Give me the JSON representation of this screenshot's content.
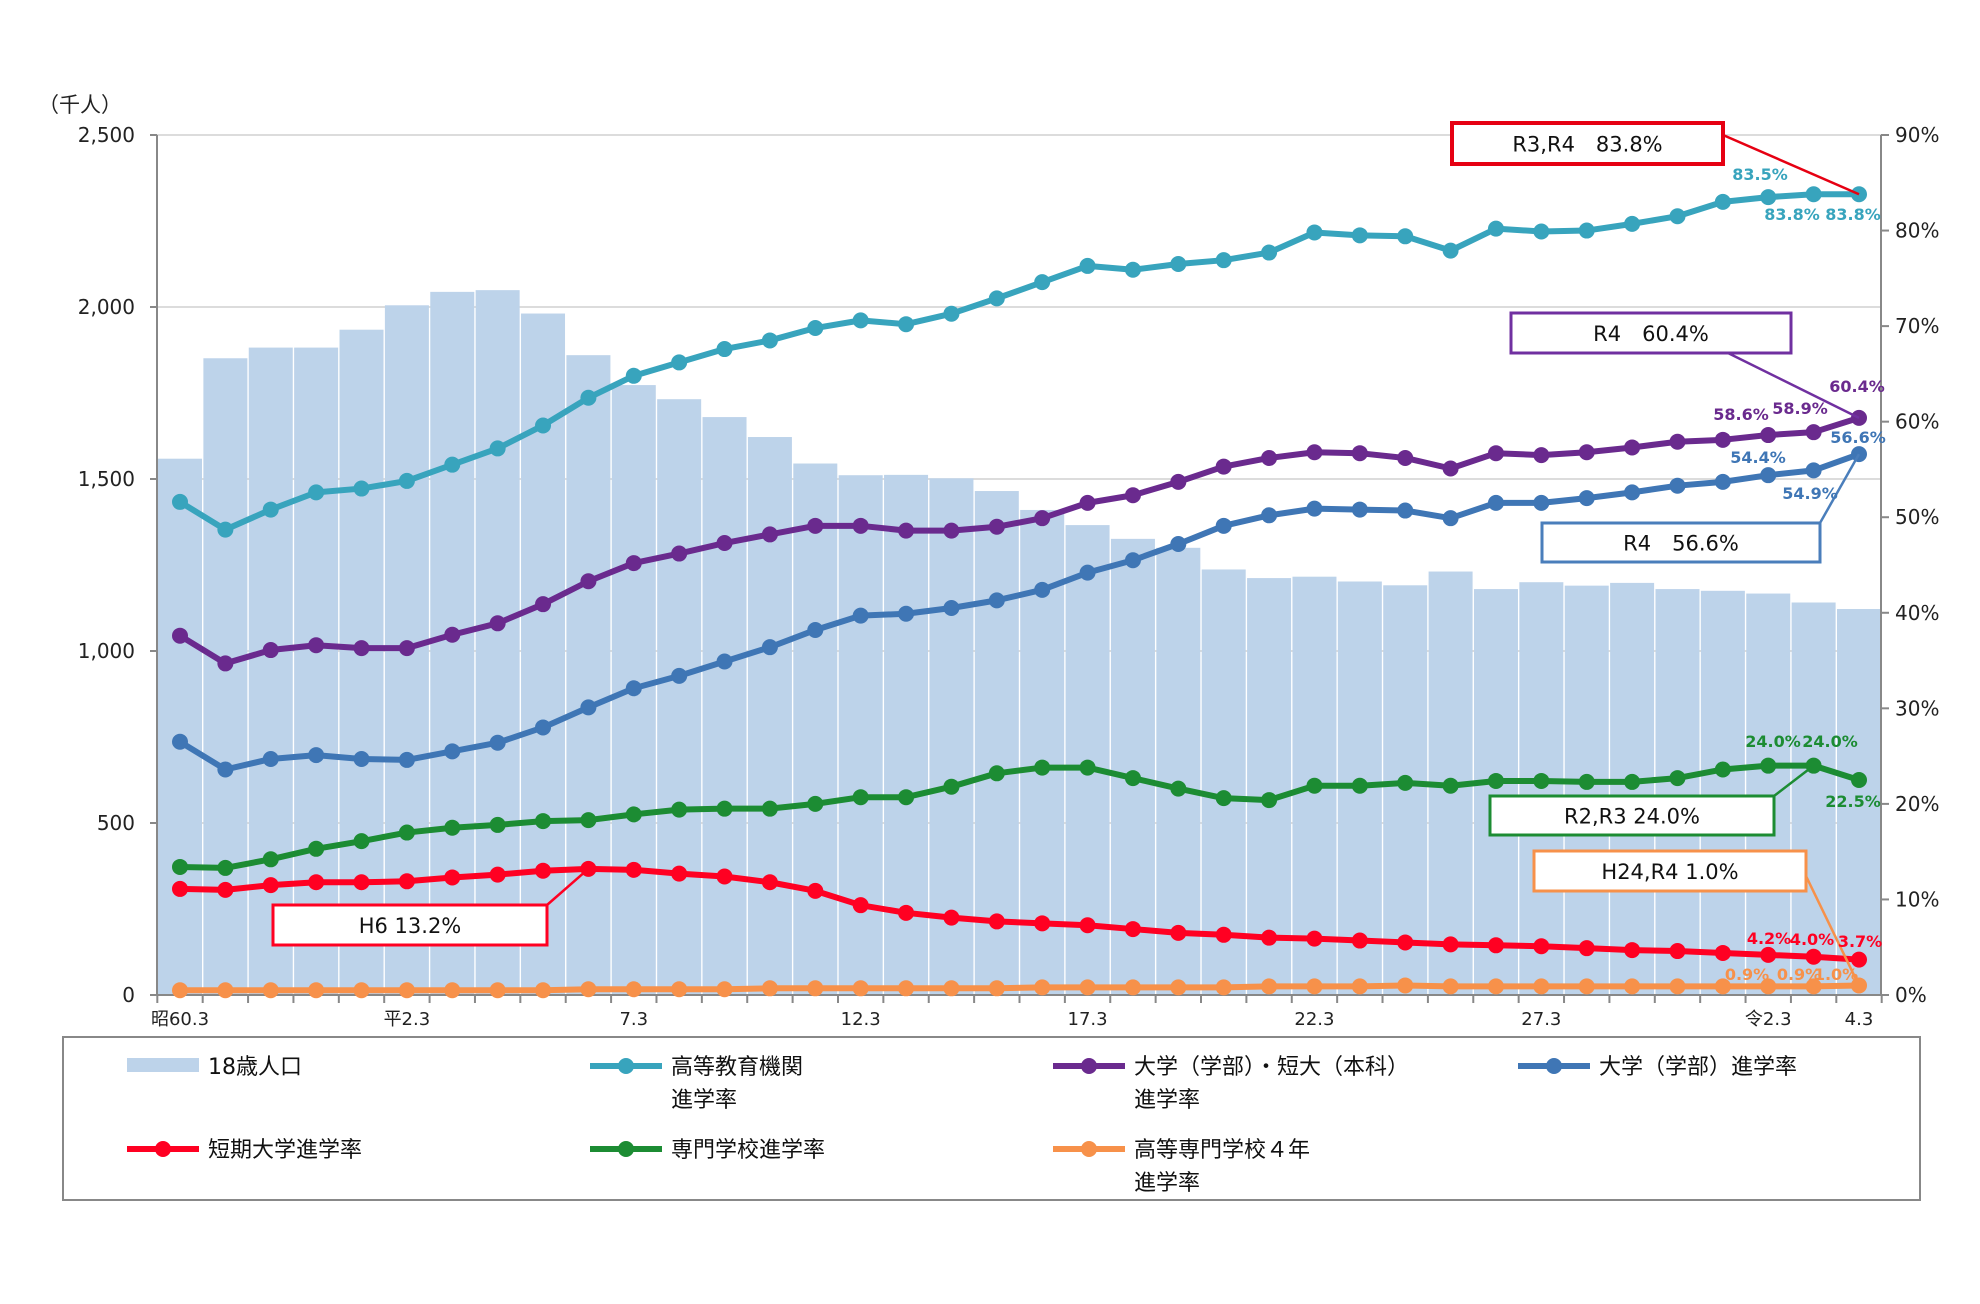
{
  "chart_data": {
    "type": "bar+line",
    "left_axis": {
      "unit_label": "（千人）",
      "ylim": [
        0,
        2500
      ],
      "ticks": [
        "0",
        "500",
        "1,000",
        "1,500",
        "2,000",
        "2,500"
      ]
    },
    "right_axis": {
      "ylim": [
        0,
        90
      ],
      "ticks": [
        "0%",
        "10%",
        "20%",
        "30%",
        "40%",
        "50%",
        "60%",
        "70%",
        "80%",
        "90%"
      ]
    },
    "grid": true,
    "legend_placement": "bottom",
    "x_tick_labels": [
      {
        "index": 0,
        "label": "昭60.3"
      },
      {
        "index": 5,
        "label": "平2.3"
      },
      {
        "index": 10,
        "label": "7.3"
      },
      {
        "index": 15,
        "label": "12.3"
      },
      {
        "index": 20,
        "label": "17.3"
      },
      {
        "index": 25,
        "label": "22.3"
      },
      {
        "index": 30,
        "label": "27.3"
      },
      {
        "index": 35,
        "label": "令2.3"
      },
      {
        "index": 37,
        "label": "4.3"
      }
    ],
    "bars": {
      "name": "18歳人口",
      "color": "#bdd3ea",
      "values": [
        1559,
        1851,
        1882,
        1882,
        1934,
        2005,
        2044,
        2049,
        1981,
        1860,
        1773,
        1732,
        1680,
        1622,
        1545,
        1511,
        1512,
        1502,
        1465,
        1410,
        1366,
        1326,
        1300,
        1237,
        1212,
        1216,
        1202,
        1191,
        1231,
        1180,
        1200,
        1190,
        1198,
        1180,
        1175,
        1167,
        1141,
        1122
      ]
    },
    "series": [
      {
        "name": "高等教育機関",
        "name2": "進学率",
        "color": "#38a4bd",
        "values": [
          51.6,
          48.7,
          50.8,
          52.6,
          53.0,
          53.8,
          55.5,
          57.2,
          59.6,
          62.5,
          64.8,
          66.2,
          67.6,
          68.5,
          69.8,
          70.6,
          70.2,
          71.3,
          72.9,
          74.6,
          76.3,
          75.9,
          76.5,
          76.9,
          77.7,
          79.8,
          79.5,
          79.4,
          77.9,
          80.2,
          79.9,
          80.0,
          80.7,
          81.5,
          83.0,
          83.5,
          83.8,
          83.8
        ]
      },
      {
        "name": "大学（学部）・短大（本科）",
        "name2": "進学率",
        "color": "#6a2a8e",
        "values": [
          37.6,
          34.7,
          36.1,
          36.6,
          36.3,
          36.3,
          37.7,
          38.9,
          40.9,
          43.3,
          45.2,
          46.2,
          47.3,
          48.2,
          49.1,
          49.1,
          48.6,
          48.6,
          49.0,
          49.9,
          51.5,
          52.3,
          53.7,
          55.3,
          56.2,
          56.8,
          56.7,
          56.2,
          55.1,
          56.7,
          56.5,
          56.8,
          57.3,
          57.9,
          58.1,
          58.6,
          58.9,
          60.4
        ]
      },
      {
        "name": "大学（学部）進学率",
        "name2": "",
        "color": "#3f76b5",
        "values": [
          26.5,
          23.6,
          24.7,
          25.1,
          24.7,
          24.6,
          25.5,
          26.4,
          28.0,
          30.1,
          32.1,
          33.4,
          34.9,
          36.4,
          38.2,
          39.7,
          39.9,
          40.5,
          41.3,
          42.4,
          44.2,
          45.5,
          47.2,
          49.1,
          50.2,
          50.9,
          50.8,
          50.7,
          49.9,
          51.5,
          51.5,
          52.0,
          52.6,
          53.3,
          53.7,
          54.4,
          54.9,
          56.6
        ]
      },
      {
        "name": "短期大学進学率",
        "name2": "",
        "color": "#ff0022",
        "values": [
          11.1,
          11.0,
          11.5,
          11.8,
          11.8,
          11.9,
          12.3,
          12.6,
          13.0,
          13.2,
          13.1,
          12.7,
          12.4,
          11.8,
          10.9,
          9.4,
          8.6,
          8.1,
          7.7,
          7.5,
          7.3,
          6.9,
          6.5,
          6.3,
          6.0,
          5.9,
          5.7,
          5.5,
          5.3,
          5.2,
          5.1,
          4.9,
          4.7,
          4.6,
          4.4,
          4.2,
          4.0,
          3.7
        ]
      },
      {
        "name": "専門学校進学率",
        "name2": "",
        "color": "#1c8c33",
        "values": [
          13.4,
          13.3,
          14.2,
          15.3,
          16.1,
          17.0,
          17.5,
          17.8,
          18.2,
          18.3,
          18.9,
          19.4,
          19.5,
          19.5,
          20.0,
          20.7,
          20.7,
          21.8,
          23.2,
          23.8,
          23.8,
          22.7,
          21.6,
          20.6,
          20.4,
          21.9,
          21.9,
          22.2,
          21.9,
          22.4,
          22.4,
          22.3,
          22.3,
          22.7,
          23.6,
          24.0,
          24.0,
          22.5
        ]
      },
      {
        "name": "高等専門学校４年",
        "name2": "進学率",
        "color": "#f7914a",
        "values": [
          0.5,
          0.5,
          0.5,
          0.5,
          0.5,
          0.5,
          0.5,
          0.5,
          0.5,
          0.6,
          0.6,
          0.6,
          0.6,
          0.7,
          0.7,
          0.7,
          0.7,
          0.7,
          0.7,
          0.8,
          0.8,
          0.8,
          0.8,
          0.8,
          0.9,
          0.9,
          0.9,
          1.0,
          0.9,
          0.9,
          0.9,
          0.9,
          0.9,
          0.9,
          0.9,
          0.9,
          0.9,
          1.0
        ]
      }
    ],
    "data_labels": [
      {
        "series": 0,
        "text": "83.5%"
      },
      {
        "series": 0,
        "text": "83.8%"
      },
      {
        "series": 0,
        "text": "83.8%"
      },
      {
        "series": 1,
        "text": "58.6%"
      },
      {
        "series": 1,
        "text": "58.9%"
      },
      {
        "series": 1,
        "text": "60.4%"
      },
      {
        "series": 2,
        "text": "54.4%"
      },
      {
        "series": 2,
        "text": "54.9%"
      },
      {
        "series": 2,
        "text": "56.6%"
      },
      {
        "series": 4,
        "text": "24.0%"
      },
      {
        "series": 4,
        "text": "24.0%"
      },
      {
        "series": 4,
        "text": "22.5%"
      },
      {
        "series": 3,
        "text": "4.2%"
      },
      {
        "series": 3,
        "text": "4.0%"
      },
      {
        "series": 3,
        "text": "3.7%"
      },
      {
        "series": 5,
        "text": "0.9%"
      },
      {
        "series": 5,
        "text": "0.9%"
      },
      {
        "series": 5,
        "text": "1.0%"
      }
    ],
    "callouts": [
      {
        "text": "R3,R4　83.8%",
        "color": "#e60012",
        "series": 0,
        "index": 37
      },
      {
        "text": "R4　60.4%",
        "color": "#7030a0",
        "series": 1,
        "index": 37
      },
      {
        "text": "R4　56.6%",
        "color": "#4a7ebb",
        "series": 2,
        "index": 37
      },
      {
        "text": "R2,R3 24.0%",
        "color": "#1c8c33",
        "series": 4,
        "index": 36
      },
      {
        "text": "H24,R4 1.0%",
        "color": "#f7914a",
        "series": 5,
        "index": 37
      },
      {
        "text": "H6  13.2%",
        "color": "#ff0022",
        "series": 3,
        "index": 9
      }
    ]
  }
}
